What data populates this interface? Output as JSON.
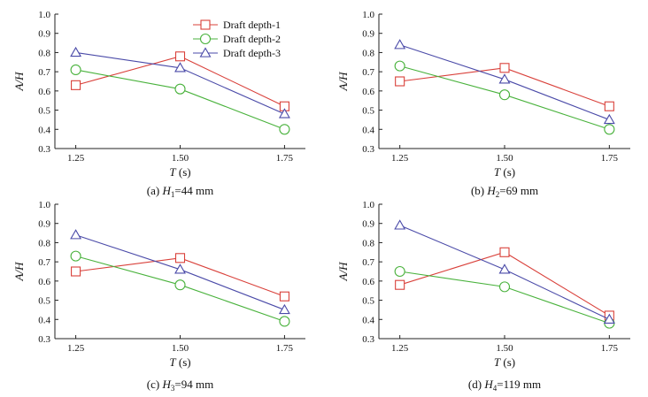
{
  "figure": {
    "colors": {
      "Draft depth-1": "#d9403a",
      "Draft depth-2": "#49b23c",
      "Draft depth-3": "#4a4aa8",
      "axis": "#222222"
    },
    "markers": {
      "Draft depth-1": "square",
      "Draft depth-2": "circle",
      "Draft depth-3": "triangle"
    }
  },
  "chart_data": [
    {
      "type": "line",
      "panel": "a",
      "caption_parts": {
        "prefix": "(a) ",
        "var": "H",
        "sub": "1",
        "value": "=44 mm"
      },
      "xlabel_var": "T",
      "xlabel_unit": " (s)",
      "ylabel": "A/H",
      "x_ticks": [
        "1.25",
        "1.50",
        "1.75"
      ],
      "x": [
        1.25,
        1.5,
        1.75
      ],
      "xlim": [
        1.2,
        1.8
      ],
      "ylim": [
        0.3,
        1.0
      ],
      "y_ticks": [
        "0.3",
        "0.4",
        "0.5",
        "0.6",
        "0.7",
        "0.8",
        "0.9",
        "1.0"
      ],
      "legend": [
        "Draft depth-1",
        "Draft depth-2",
        "Draft depth-3"
      ],
      "series": [
        {
          "name": "Draft depth-1",
          "values": [
            0.63,
            0.78,
            0.52
          ]
        },
        {
          "name": "Draft depth-2",
          "values": [
            0.71,
            0.61,
            0.4
          ]
        },
        {
          "name": "Draft depth-3",
          "values": [
            0.8,
            0.72,
            0.48
          ]
        }
      ]
    },
    {
      "type": "line",
      "panel": "b",
      "caption_parts": {
        "prefix": "(b) ",
        "var": "H",
        "sub": "2",
        "value": "=69 mm"
      },
      "xlabel_var": "T",
      "xlabel_unit": " (s)",
      "ylabel": "A/H",
      "x_ticks": [
        "1.25",
        "1.50",
        "1.75"
      ],
      "x": [
        1.25,
        1.5,
        1.75
      ],
      "xlim": [
        1.2,
        1.8
      ],
      "ylim": [
        0.3,
        1.0
      ],
      "y_ticks": [
        "0.3",
        "0.4",
        "0.5",
        "0.6",
        "0.7",
        "0.8",
        "0.9",
        "1.0"
      ],
      "series": [
        {
          "name": "Draft depth-1",
          "values": [
            0.65,
            0.72,
            0.52
          ]
        },
        {
          "name": "Draft depth-2",
          "values": [
            0.73,
            0.58,
            0.4
          ]
        },
        {
          "name": "Draft depth-3",
          "values": [
            0.84,
            0.66,
            0.45
          ]
        }
      ]
    },
    {
      "type": "line",
      "panel": "c",
      "caption_parts": {
        "prefix": "(c) ",
        "var": "H",
        "sub": "3",
        "value": "=94 mm"
      },
      "xlabel_var": "T",
      "xlabel_unit": " (s)",
      "ylabel": "A/H",
      "x_ticks": [
        "1.25",
        "1.50",
        "1.75"
      ],
      "x": [
        1.25,
        1.5,
        1.75
      ],
      "xlim": [
        1.2,
        1.8
      ],
      "ylim": [
        0.3,
        1.0
      ],
      "y_ticks": [
        "0.3",
        "0.4",
        "0.5",
        "0.6",
        "0.7",
        "0.8",
        "0.9",
        "1.0"
      ],
      "series": [
        {
          "name": "Draft depth-1",
          "values": [
            0.65,
            0.72,
            0.52
          ]
        },
        {
          "name": "Draft depth-2",
          "values": [
            0.73,
            0.58,
            0.39
          ]
        },
        {
          "name": "Draft depth-3",
          "values": [
            0.84,
            0.66,
            0.45
          ]
        }
      ]
    },
    {
      "type": "line",
      "panel": "d",
      "caption_parts": {
        "prefix": "(d) ",
        "var": "H",
        "sub": "4",
        "value": "=119 mm"
      },
      "xlabel_var": "T",
      "xlabel_unit": " (s)",
      "ylabel": "A/H",
      "x_ticks": [
        "1.25",
        "1.50",
        "1.75"
      ],
      "x": [
        1.25,
        1.5,
        1.75
      ],
      "xlim": [
        1.2,
        1.8
      ],
      "ylim": [
        0.3,
        1.0
      ],
      "y_ticks": [
        "0.3",
        "0.4",
        "0.5",
        "0.6",
        "0.7",
        "0.8",
        "0.9",
        "1.0"
      ],
      "series": [
        {
          "name": "Draft depth-1",
          "values": [
            0.58,
            0.75,
            0.42
          ]
        },
        {
          "name": "Draft depth-2",
          "values": [
            0.65,
            0.57,
            0.38
          ]
        },
        {
          "name": "Draft depth-3",
          "values": [
            0.89,
            0.66,
            0.4
          ]
        }
      ]
    }
  ]
}
